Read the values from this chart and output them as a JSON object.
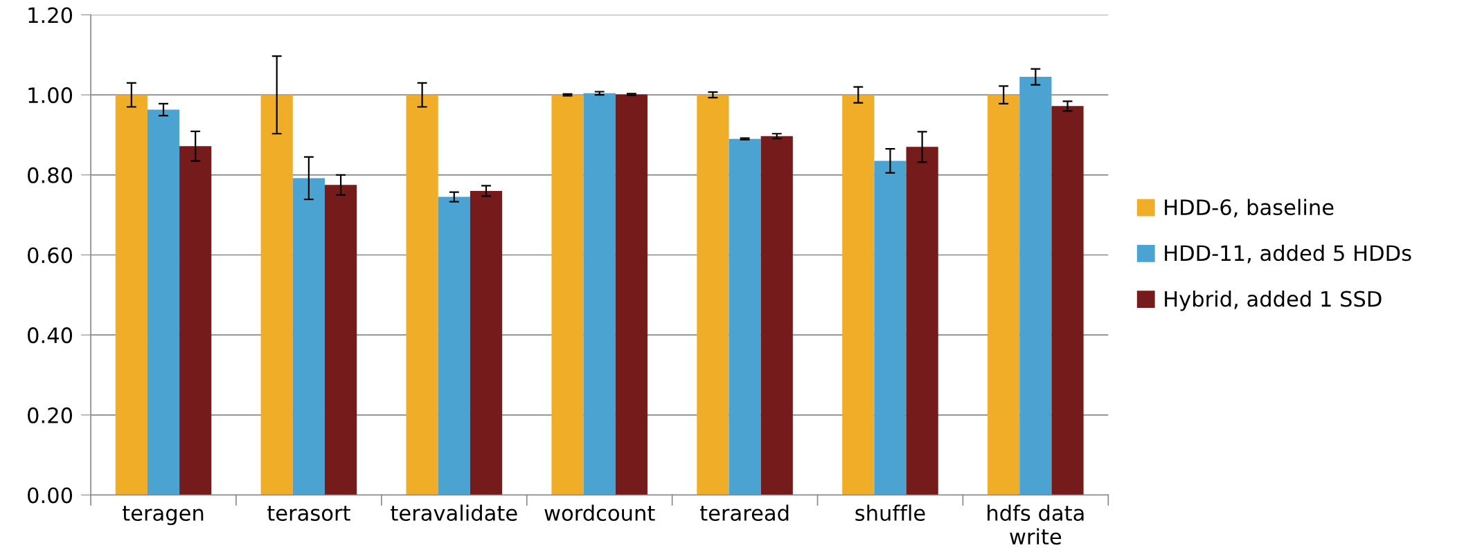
{
  "chart_data": {
    "type": "bar",
    "categories": [
      "teragen",
      "terasort",
      "teravalidate",
      "wordcount",
      "teraread",
      "shuffle",
      "hdfs data\nwrite"
    ],
    "series": [
      {
        "name": "HDD-6, baseline",
        "color": "#f0ad28",
        "values": [
          1.0,
          1.0,
          1.0,
          1.0,
          1.0,
          1.0,
          1.0
        ],
        "errors": [
          0.03,
          0.097,
          0.03,
          0.002,
          0.007,
          0.02,
          0.022
        ]
      },
      {
        "name": "HDD-11, added 5 HDDs",
        "color": "#4aa3d0",
        "values": [
          0.963,
          0.792,
          0.745,
          1.004,
          0.89,
          0.835,
          1.045
        ],
        "errors": [
          0.015,
          0.053,
          0.012,
          0.004,
          0.002,
          0.03,
          0.02
        ]
      },
      {
        "name": "Hybrid, added 1 SSD",
        "color": "#761b1c",
        "values": [
          0.872,
          0.775,
          0.76,
          1.001,
          0.897,
          0.87,
          0.972
        ],
        "errors": [
          0.037,
          0.025,
          0.013,
          0.002,
          0.006,
          0.038,
          0.012
        ]
      }
    ],
    "ylim": [
      0,
      1.2
    ],
    "yticks": [
      {
        "value": 0,
        "label": "0.00"
      },
      {
        "value": 0.2,
        "label": "0.20"
      },
      {
        "value": 0.4,
        "label": "0.40"
      },
      {
        "value": 0.6,
        "label": "0.60"
      },
      {
        "value": 0.8,
        "label": "0.80"
      },
      {
        "value": 1.0,
        "label": "1.00"
      },
      {
        "value": 1.2,
        "label": "1.20"
      }
    ],
    "grid": "y",
    "legend": "right"
  }
}
